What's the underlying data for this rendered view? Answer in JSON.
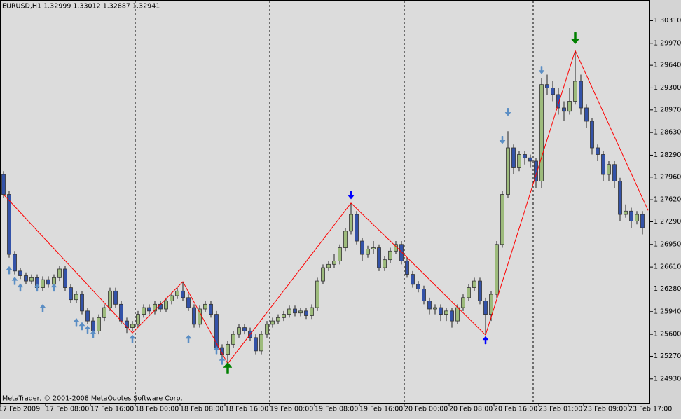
{
  "chart_data": {
    "type": "candlestick",
    "title": "EURUSD,H1  1.32999 1.33012 1.32887 1.32941",
    "footer": "MetaTrader, © 2001-2008 MetaQuotes Software Corp.",
    "up_color": "#9dbb7c",
    "down_color": "#3352a8",
    "categories": [
      "17 Feb 2009",
      null,
      null,
      null,
      null,
      null,
      null,
      null,
      "17 Feb 08:00",
      null,
      null,
      null,
      null,
      null,
      null,
      null,
      "17 Feb 16:00",
      null,
      null,
      null,
      null,
      null,
      null,
      null,
      "18 Feb 00:00",
      null,
      null,
      null,
      null,
      null,
      null,
      null,
      "18 Feb 08:00",
      null,
      null,
      null,
      null,
      null,
      null,
      null,
      "18 Feb 16:00",
      null,
      null,
      null,
      null,
      null,
      null,
      null,
      "19 Feb 00:00",
      null,
      null,
      null,
      null,
      null,
      null,
      null,
      "19 Feb 08:00",
      null,
      null,
      null,
      null,
      null,
      null,
      null,
      "19 Feb 16:00",
      null,
      null,
      null,
      null,
      null,
      null,
      null,
      "20 Feb 00:00",
      null,
      null,
      null,
      null,
      null,
      null,
      null,
      "20 Feb 08:00",
      null,
      null,
      null,
      null,
      null,
      null,
      null,
      "20 Feb 16:00",
      null,
      null,
      null,
      null,
      null,
      null,
      null,
      "23 Feb 01:00",
      null,
      null,
      null,
      null,
      null,
      null,
      null,
      "23 Feb 09:00",
      null,
      null,
      null,
      null,
      null,
      null,
      null,
      "23 Feb 17:00",
      null,
      null
    ],
    "open": [
      1.28,
      1.277,
      1.268,
      1.2655,
      1.2648,
      1.264,
      1.2645,
      1.263,
      1.2642,
      1.2635,
      1.2645,
      1.2658,
      1.263,
      1.2612,
      1.262,
      1.2595,
      1.258,
      1.2565,
      1.2585,
      1.26,
      1.2625,
      1.2605,
      1.258,
      1.257,
      1.2575,
      1.259,
      1.26,
      1.2595,
      1.2605,
      1.2598,
      1.261,
      1.2618,
      1.2625,
      1.2615,
      1.26,
      1.2575,
      1.2598,
      1.2605,
      1.259,
      1.254,
      1.253,
      1.2545,
      1.256,
      1.257,
      1.2565,
      1.2555,
      1.2535,
      1.256,
      1.2575,
      1.258,
      1.2585,
      1.259,
      1.2598,
      1.2592,
      1.2595,
      1.2588,
      1.26,
      1.264,
      1.266,
      1.2665,
      1.267,
      1.269,
      1.2715,
      1.274,
      1.27,
      1.268,
      1.2688,
      1.269,
      1.266,
      1.2672,
      1.2685,
      1.2695,
      1.267,
      1.265,
      1.2635,
      1.2628,
      1.261,
      1.2598,
      1.26,
      1.259,
      1.2595,
      1.258,
      1.26,
      1.2615,
      1.263,
      1.264,
      1.261,
      1.259,
      1.262,
      1.2695,
      1.277,
      1.284,
      1.281,
      1.283,
      1.2825,
      1.282,
      1.279,
      1.2935,
      1.293,
      1.292,
      1.29,
      1.2895,
      1.291,
      1.294,
      1.29,
      1.288,
      1.284,
      1.283,
      1.28,
      1.2815,
      1.279,
      1.274,
      1.2745,
      1.273,
      1.274
    ],
    "high": [
      1.2805,
      1.2775,
      1.2685,
      1.266,
      1.2653,
      1.265,
      1.265,
      1.2647,
      1.2647,
      1.265,
      1.2663,
      1.2663,
      1.2635,
      1.2625,
      1.2625,
      1.26,
      1.2585,
      1.259,
      1.2605,
      1.263,
      1.263,
      1.261,
      1.2585,
      1.258,
      1.2595,
      1.2605,
      1.2605,
      1.261,
      1.261,
      1.2615,
      1.2623,
      1.263,
      1.2639,
      1.262,
      1.2605,
      1.2603,
      1.261,
      1.261,
      1.2595,
      1.2545,
      1.255,
      1.2565,
      1.2575,
      1.2575,
      1.257,
      1.256,
      1.2565,
      1.258,
      1.2585,
      1.259,
      1.2595,
      1.2603,
      1.2603,
      1.26,
      1.26,
      1.2605,
      1.2645,
      1.2665,
      1.267,
      1.268,
      1.2695,
      1.272,
      1.2757,
      1.2745,
      1.2705,
      1.2693,
      1.27,
      1.2695,
      1.2677,
      1.269,
      1.27,
      1.27,
      1.2675,
      1.2655,
      1.264,
      1.2633,
      1.2615,
      1.2605,
      1.2605,
      1.26,
      1.26,
      1.2605,
      1.262,
      1.2635,
      1.2645,
      1.2645,
      1.2615,
      1.2625,
      1.27,
      1.2775,
      1.2865,
      1.2845,
      1.2835,
      1.2835,
      1.283,
      1.2825,
      1.2945,
      1.295,
      1.294,
      1.293,
      1.291,
      1.293,
      1.2986,
      1.295,
      1.2905,
      1.2885,
      1.2845,
      1.2835,
      1.282,
      1.282,
      1.2795,
      1.2755,
      1.275,
      1.2745,
      1.2745
    ],
    "low": [
      1.2765,
      1.2675,
      1.265,
      1.2643,
      1.2635,
      1.2635,
      1.2625,
      1.2625,
      1.263,
      1.263,
      1.264,
      1.2625,
      1.2607,
      1.2607,
      1.259,
      1.2575,
      1.256,
      1.256,
      1.258,
      1.2595,
      1.26,
      1.2575,
      1.2562,
      1.2565,
      1.257,
      1.2585,
      1.259,
      1.259,
      1.2593,
      1.2593,
      1.2605,
      1.2613,
      1.261,
      1.2595,
      1.257,
      1.257,
      1.2593,
      1.2585,
      1.2535,
      1.252,
      1.2516,
      1.254,
      1.2555,
      1.256,
      1.255,
      1.253,
      1.253,
      1.2555,
      1.257,
      1.2575,
      1.258,
      1.2585,
      1.2587,
      1.2587,
      1.2583,
      1.2583,
      1.2595,
      1.2635,
      1.2655,
      1.266,
      1.2665,
      1.2685,
      1.271,
      1.2695,
      1.267,
      1.2675,
      1.268,
      1.2655,
      1.2655,
      1.2667,
      1.268,
      1.2665,
      1.2645,
      1.263,
      1.2623,
      1.2605,
      1.259,
      1.259,
      1.258,
      1.258,
      1.257,
      1.2575,
      1.2595,
      1.261,
      1.2625,
      1.2605,
      1.2559,
      1.258,
      1.2615,
      1.269,
      1.2765,
      1.28,
      1.2805,
      1.2815,
      1.281,
      1.278,
      1.278,
      1.292,
      1.291,
      1.289,
      1.288,
      1.289,
      1.2905,
      1.289,
      1.287,
      1.283,
      1.282,
      1.279,
      1.279,
      1.278,
      1.273,
      1.2735,
      1.272,
      1.2725,
      1.271
    ],
    "close": [
      1.277,
      1.268,
      1.2655,
      1.2648,
      1.264,
      1.2645,
      1.263,
      1.2642,
      1.2635,
      1.2645,
      1.2658,
      1.263,
      1.2612,
      1.262,
      1.2595,
      1.258,
      1.2565,
      1.2585,
      1.26,
      1.2625,
      1.2605,
      1.258,
      1.257,
      1.2575,
      1.259,
      1.26,
      1.2595,
      1.2605,
      1.2598,
      1.261,
      1.2618,
      1.2625,
      1.2615,
      1.26,
      1.2575,
      1.2598,
      1.2605,
      1.259,
      1.254,
      1.253,
      1.2545,
      1.256,
      1.257,
      1.2565,
      1.2555,
      1.2535,
      1.256,
      1.2575,
      1.258,
      1.2585,
      1.259,
      1.2598,
      1.2592,
      1.2595,
      1.2588,
      1.26,
      1.264,
      1.266,
      1.2665,
      1.267,
      1.269,
      1.2715,
      1.274,
      1.27,
      1.268,
      1.2688,
      1.269,
      1.266,
      1.2672,
      1.2685,
      1.2695,
      1.267,
      1.265,
      1.2635,
      1.2628,
      1.261,
      1.2598,
      1.26,
      1.259,
      1.2595,
      1.258,
      1.26,
      1.2615,
      1.263,
      1.264,
      1.261,
      1.259,
      1.262,
      1.2695,
      1.277,
      1.284,
      1.281,
      1.283,
      1.2825,
      1.282,
      1.279,
      1.2935,
      1.293,
      1.292,
      1.29,
      1.2895,
      1.291,
      1.294,
      1.29,
      1.288,
      1.284,
      1.283,
      1.28,
      1.2815,
      1.279,
      1.274,
      1.2745,
      1.273,
      1.274,
      1.272
    ],
    "zigzag": {
      "color": "#ff0000",
      "x": [
        0,
        23,
        32,
        40,
        62,
        70,
        86,
        102,
        115
      ],
      "values": [
        1.277,
        1.2562,
        1.2639,
        1.2516,
        1.2757,
        1.2692,
        1.2559,
        1.2986,
        1.2746
      ]
    },
    "up_arrows": {
      "x": [
        1,
        2,
        3,
        6,
        7,
        9,
        13,
        14,
        15,
        16,
        23,
        33,
        38,
        39,
        86,
        40
      ],
      "values": [
        1.2662,
        1.2646,
        1.2636,
        1.2636,
        1.2605,
        1.2636,
        1.2584,
        1.2578,
        1.2573,
        1.2566,
        1.2559,
        1.2559,
        1.2542,
        1.2526,
        1.2557,
        1.2518
      ],
      "colors": [
        "#5b8ec4",
        "#5b8ec4",
        "#5b8ec4",
        "#5b8ec4",
        "#5b8ec4",
        "#5b8ec4",
        "#5b8ec4",
        "#5b8ec4",
        "#5b8ec4",
        "#5b8ec4",
        "#5b8ec4",
        "#5b8ec4",
        "#5b8ec4",
        "#5b8ec4",
        "#0000ff",
        "#008000"
      ]
    },
    "down_arrows": {
      "x": [
        62,
        89,
        90,
        96,
        102
      ],
      "values": [
        1.2763,
        1.2846,
        1.2888,
        1.2951,
        1.2996
      ],
      "colors": [
        "#0000ff",
        "#5b8ec4",
        "#5b8ec4",
        "#5b8ec4",
        "#008000"
      ]
    },
    "ylim": [
      1.2457,
      1.3062
    ],
    "yticks": [
      {
        "value": 1.3031,
        "label": "1.30310"
      },
      {
        "value": 1.2997,
        "label": "1.29970"
      },
      {
        "value": 1.2964,
        "label": "1.29640"
      },
      {
        "value": 1.293,
        "label": "1.29300"
      },
      {
        "value": 1.2897,
        "label": "1.28970"
      },
      {
        "value": 1.2863,
        "label": "1.28630"
      },
      {
        "value": 1.2829,
        "label": "1.28290"
      },
      {
        "value": 1.2796,
        "label": "1.27960"
      },
      {
        "value": 1.2762,
        "label": "1.27620"
      },
      {
        "value": 1.2729,
        "label": "1.27290"
      },
      {
        "value": 1.2695,
        "label": "1.26950"
      },
      {
        "value": 1.2661,
        "label": "1.26610"
      },
      {
        "value": 1.2628,
        "label": "1.26280"
      },
      {
        "value": 1.2594,
        "label": "1.25940"
      },
      {
        "value": 1.256,
        "label": "1.25600"
      },
      {
        "value": 1.2527,
        "label": "1.25270"
      },
      {
        "value": 1.2493,
        "label": "1.24930"
      }
    ]
  }
}
